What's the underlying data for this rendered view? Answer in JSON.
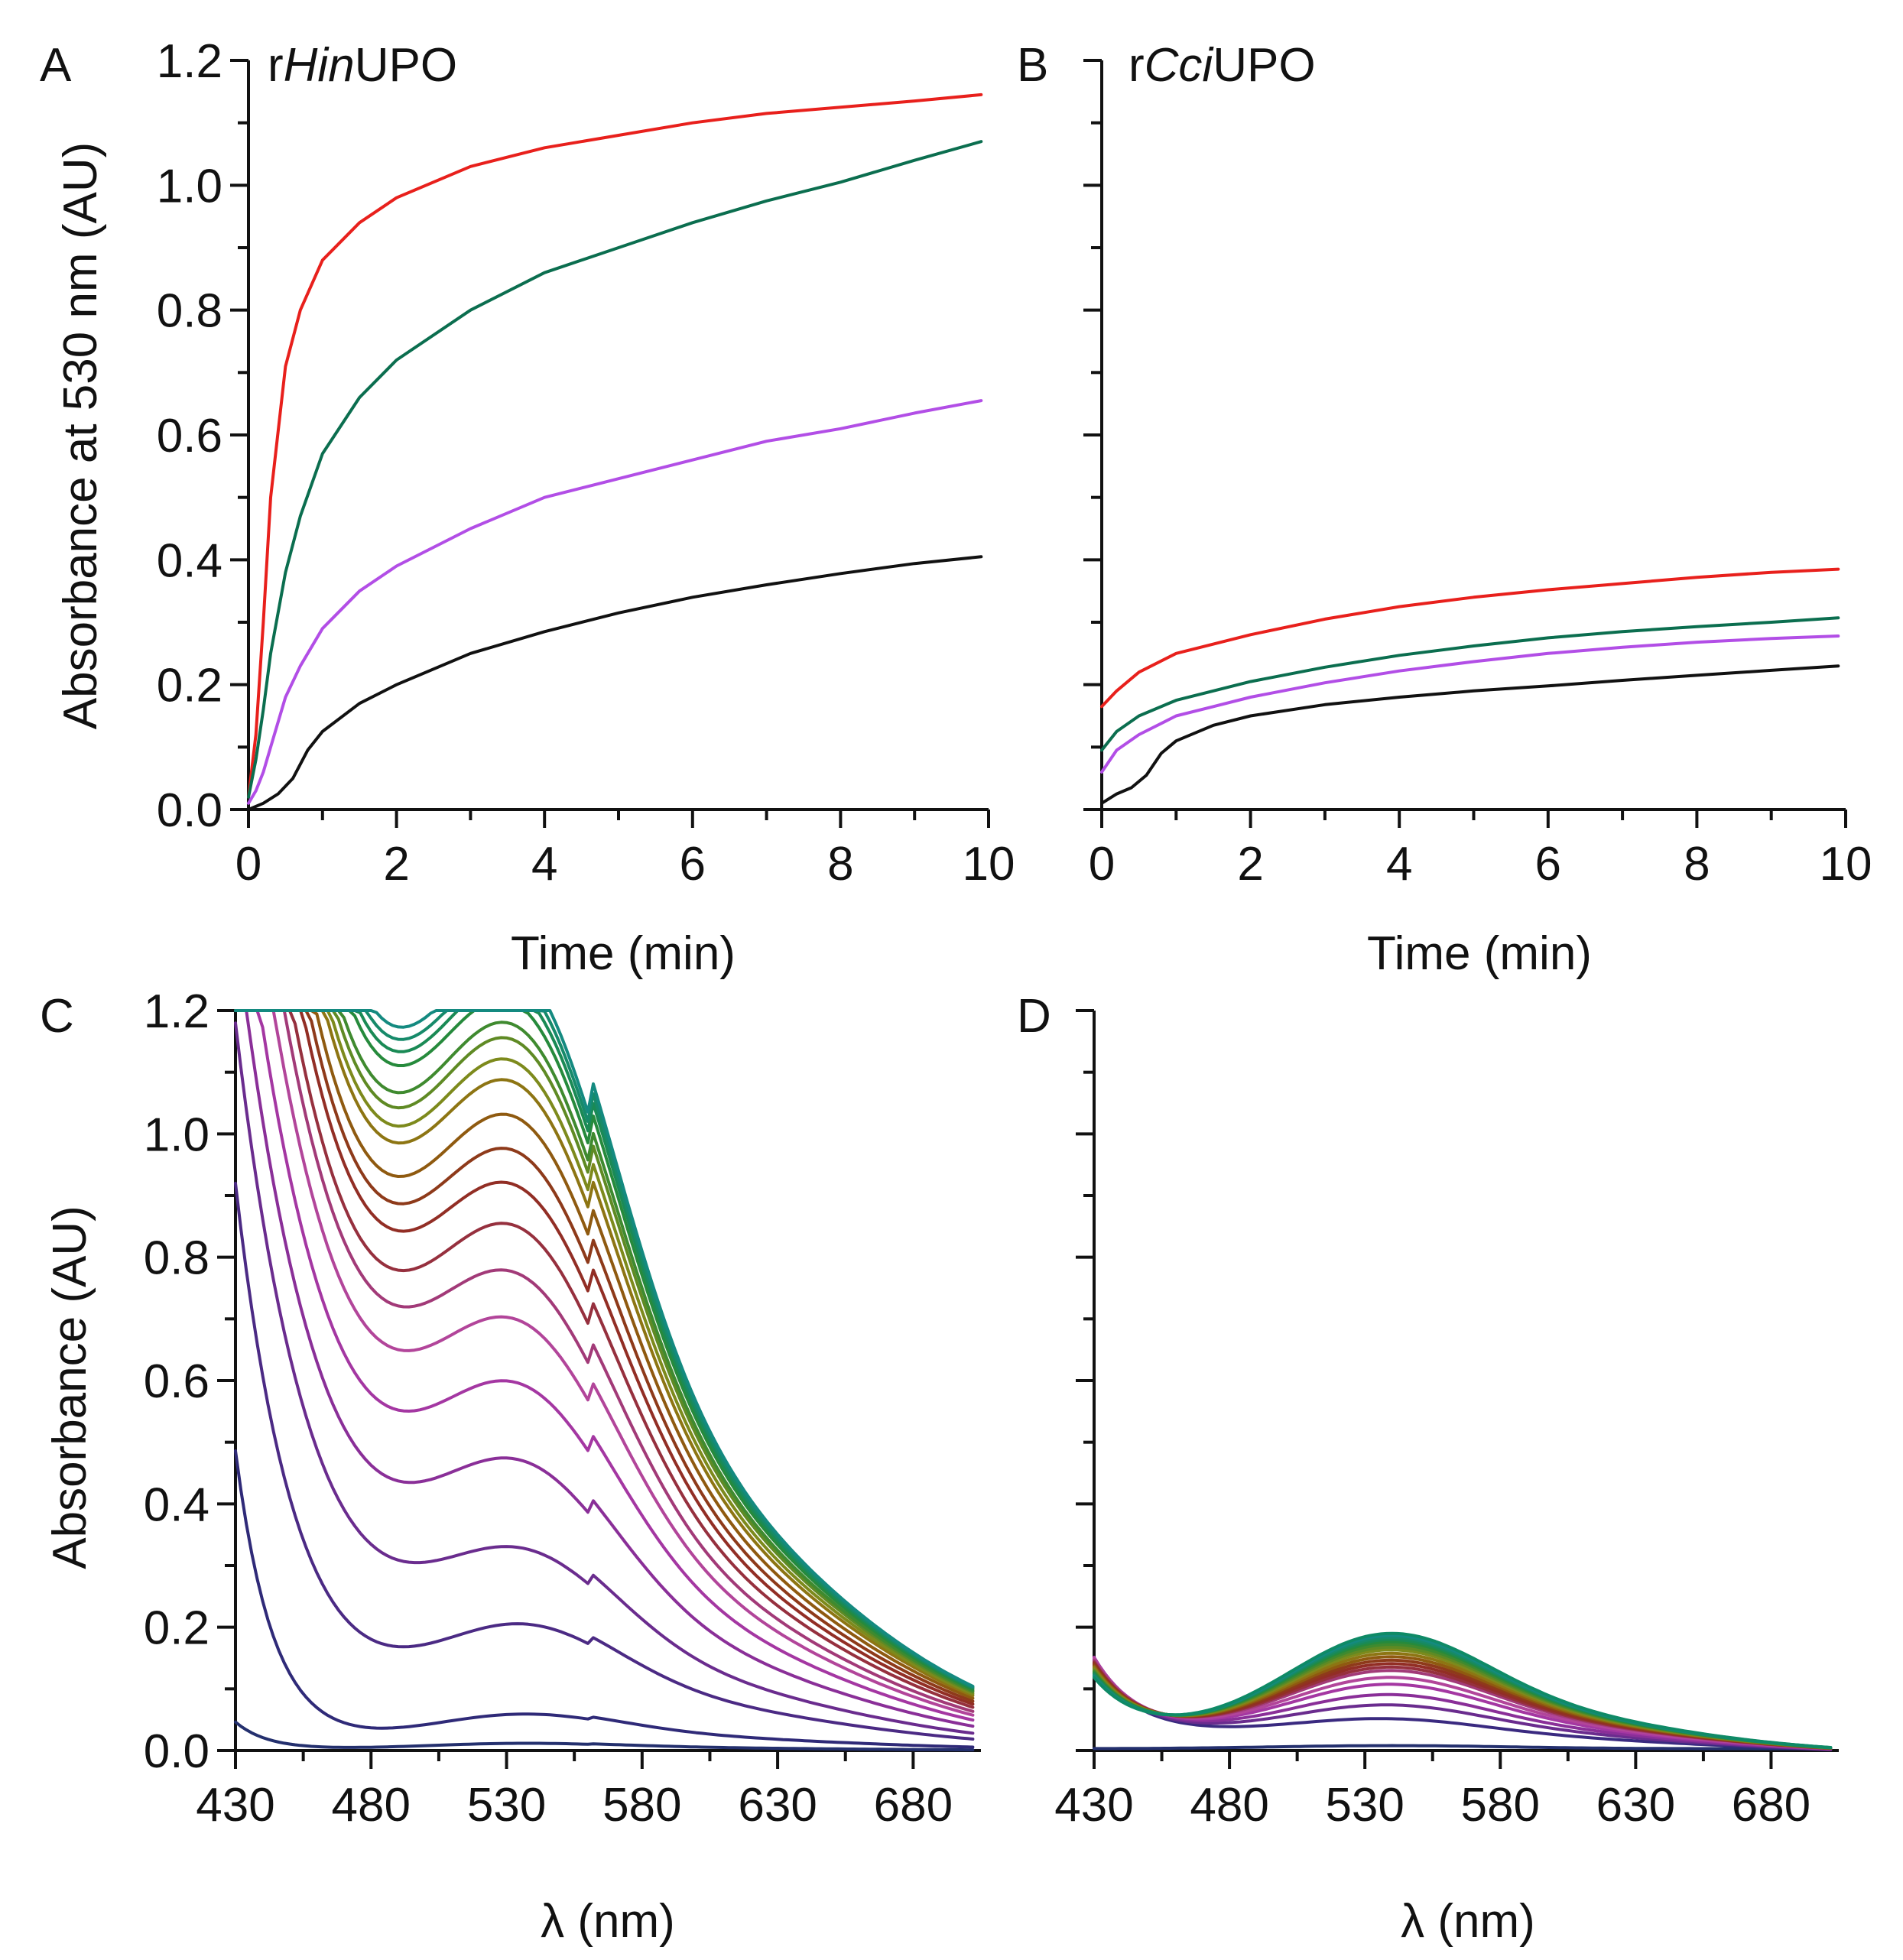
{
  "colors": {
    "red": "#e8201c",
    "green": "#0b6e4f",
    "violet": "#b24ee6",
    "black": "#111111"
  },
  "chart_data": [
    {
      "type": "line",
      "panel": "A",
      "title_parts": [
        "r",
        "Hin",
        "UPO"
      ],
      "xlabel": "Time (min)",
      "ylabel": "Absorbance at 530 nm (AU)",
      "xlim": [
        0,
        10
      ],
      "ylim": [
        0,
        1.2
      ],
      "x_ticks": [
        "0",
        "2",
        "4",
        "6",
        "8",
        "10"
      ],
      "y_ticks": [
        "0.0",
        "0.2",
        "0.4",
        "0.6",
        "0.8",
        "1.0",
        "1.2"
      ],
      "series": [
        {
          "name": "red",
          "color": "#e8201c",
          "x": [
            0,
            0.1,
            0.2,
            0.3,
            0.5,
            0.7,
            1,
            1.5,
            2,
            3,
            4,
            5,
            6,
            7,
            8,
            9,
            9.9
          ],
          "y": [
            0.02,
            0.12,
            0.3,
            0.5,
            0.71,
            0.8,
            0.88,
            0.94,
            0.98,
            1.03,
            1.06,
            1.08,
            1.1,
            1.115,
            1.125,
            1.135,
            1.145
          ]
        },
        {
          "name": "green",
          "color": "#0b6e4f",
          "x": [
            0,
            0.1,
            0.2,
            0.3,
            0.5,
            0.7,
            1,
            1.5,
            2,
            3,
            4,
            5,
            6,
            7,
            8,
            9,
            9.9
          ],
          "y": [
            0.02,
            0.08,
            0.16,
            0.25,
            0.38,
            0.47,
            0.57,
            0.66,
            0.72,
            0.8,
            0.86,
            0.9,
            0.94,
            0.975,
            1.005,
            1.04,
            1.07
          ]
        },
        {
          "name": "violet",
          "color": "#b24ee6",
          "x": [
            0,
            0.1,
            0.2,
            0.3,
            0.5,
            0.7,
            1,
            1.5,
            2,
            3,
            4,
            5,
            6,
            7,
            8,
            9,
            9.9
          ],
          "y": [
            0.01,
            0.03,
            0.06,
            0.1,
            0.18,
            0.23,
            0.29,
            0.35,
            0.39,
            0.45,
            0.5,
            0.53,
            0.56,
            0.59,
            0.61,
            0.635,
            0.655
          ]
        },
        {
          "name": "black",
          "color": "#111111",
          "x": [
            0,
            0.2,
            0.4,
            0.6,
            0.8,
            1,
            1.5,
            2,
            3,
            4,
            5,
            6,
            7,
            8,
            9,
            9.9
          ],
          "y": [
            0.0,
            0.01,
            0.025,
            0.05,
            0.095,
            0.125,
            0.17,
            0.2,
            0.25,
            0.285,
            0.315,
            0.34,
            0.36,
            0.378,
            0.394,
            0.405
          ]
        }
      ]
    },
    {
      "type": "line",
      "panel": "B",
      "title_parts": [
        "r",
        "Cci",
        "UPO"
      ],
      "xlabel": "Time (min)",
      "ylabel": "",
      "xlim": [
        0,
        10
      ],
      "ylim": [
        0,
        1.2
      ],
      "x_ticks": [
        "0",
        "2",
        "4",
        "6",
        "8",
        "10"
      ],
      "y_ticks": [],
      "series": [
        {
          "name": "red",
          "color": "#e8201c",
          "x": [
            0,
            0.2,
            0.5,
            1,
            1.5,
            2,
            3,
            4,
            5,
            6,
            7,
            8,
            9,
            9.9
          ],
          "y": [
            0.165,
            0.19,
            0.22,
            0.25,
            0.265,
            0.28,
            0.305,
            0.325,
            0.34,
            0.352,
            0.362,
            0.372,
            0.38,
            0.385
          ]
        },
        {
          "name": "green",
          "color": "#0b6e4f",
          "x": [
            0,
            0.2,
            0.5,
            1,
            1.5,
            2,
            3,
            4,
            5,
            6,
            7,
            8,
            9,
            9.9
          ],
          "y": [
            0.095,
            0.125,
            0.15,
            0.175,
            0.19,
            0.205,
            0.228,
            0.247,
            0.262,
            0.275,
            0.285,
            0.293,
            0.3,
            0.307
          ]
        },
        {
          "name": "violet",
          "color": "#b24ee6",
          "x": [
            0,
            0.2,
            0.5,
            1,
            1.5,
            2,
            3,
            4,
            5,
            6,
            7,
            8,
            9,
            9.9
          ],
          "y": [
            0.06,
            0.095,
            0.12,
            0.15,
            0.165,
            0.18,
            0.203,
            0.222,
            0.237,
            0.25,
            0.26,
            0.268,
            0.274,
            0.278
          ]
        },
        {
          "name": "black",
          "color": "#111111",
          "x": [
            0,
            0.2,
            0.4,
            0.6,
            0.8,
            1,
            1.5,
            2,
            3,
            4,
            5,
            6,
            7,
            8,
            9,
            9.9
          ],
          "y": [
            0.01,
            0.025,
            0.035,
            0.055,
            0.09,
            0.11,
            0.135,
            0.15,
            0.168,
            0.18,
            0.19,
            0.198,
            0.207,
            0.215,
            0.223,
            0.23
          ]
        }
      ]
    },
    {
      "type": "line",
      "panel": "C",
      "title_parts": [],
      "xlabel": "λ (nm)",
      "ylabel": "Absorbance (AU)",
      "xlim": [
        430,
        705
      ],
      "ylim": [
        0,
        1.2
      ],
      "x_ticks": [
        "430",
        "480",
        "530",
        "580",
        "630",
        "680"
      ],
      "y_ticks": [
        "0.0",
        "0.2",
        "0.4",
        "0.6",
        "0.8",
        "1.0",
        "1.2"
      ],
      "series_colors": [
        "#24306e",
        "#2f2a78",
        "#4b2a84",
        "#6a2c8e",
        "#8a2f98",
        "#a437a2",
        "#b2459a",
        "#a23a78",
        "#96303e",
        "#922e25",
        "#8e3a1a",
        "#8f5a10",
        "#8d7513",
        "#7d8a1c",
        "#5f8a24",
        "#3f8a2f",
        "#268a3c",
        "#1a8a55",
        "#168a6a",
        "#148a80"
      ],
      "series_params": [
        {
          "peak": 0.012,
          "amp": 0.045,
          "decay": 12
        },
        {
          "peak": 0.06,
          "amp": 0.48,
          "decay": 14
        },
        {
          "peak": 0.2,
          "amp": 0.9,
          "decay": 23
        },
        {
          "peak": 0.3,
          "amp": 1.15,
          "decay": 30
        },
        {
          "peak": 0.42,
          "amp": 1.3,
          "decay": 34
        },
        {
          "peak": 0.52,
          "amp": 1.45,
          "decay": 37
        },
        {
          "peak": 0.6,
          "amp": 1.6,
          "decay": 39
        },
        {
          "peak": 0.66,
          "amp": 1.72,
          "decay": 40
        },
        {
          "peak": 0.73,
          "amp": 1.82,
          "decay": 40
        },
        {
          "peak": 0.78,
          "amp": 1.92,
          "decay": 41
        },
        {
          "peak": 0.83,
          "amp": 2.0,
          "decay": 41
        },
        {
          "peak": 0.88,
          "amp": 2.08,
          "decay": 41
        },
        {
          "peak": 0.92,
          "amp": 2.15,
          "decay": 42
        },
        {
          "peak": 0.95,
          "amp": 2.2,
          "decay": 42
        },
        {
          "peak": 0.98,
          "amp": 2.26,
          "decay": 42
        },
        {
          "peak": 1.0,
          "amp": 2.32,
          "decay": 42
        },
        {
          "peak": 1.02,
          "amp": 2.38,
          "decay": 43
        },
        {
          "peak": 1.04,
          "amp": 2.43,
          "decay": 43
        },
        {
          "peak": 1.055,
          "amp": 2.48,
          "decay": 43
        },
        {
          "peak": 1.07,
          "amp": 2.53,
          "decay": 43
        }
      ]
    },
    {
      "type": "line",
      "panel": "D",
      "title_parts": [],
      "xlabel": "λ (nm)",
      "ylabel": "",
      "xlim": [
        430,
        705
      ],
      "ylim": [
        0,
        1.2
      ],
      "x_ticks": [
        "430",
        "480",
        "530",
        "580",
        "630",
        "680"
      ],
      "y_ticks": [],
      "series_colors": [
        "#24306e",
        "#3a2a80",
        "#6a2c8e",
        "#8a2f98",
        "#a437a2",
        "#b2459a",
        "#a23a78",
        "#96303e",
        "#922e25",
        "#8e3a1a",
        "#8f5a10",
        "#8d7513",
        "#7d8a1c",
        "#5f8a24",
        "#3f8a2f",
        "#268a3c",
        "#1a8a55",
        "#168a6a",
        "#148a80",
        "#0f8a66"
      ],
      "series_params": [
        {
          "peak": 0.005,
          "start": 0.0
        },
        {
          "peak": 0.03,
          "start": 0.14
        },
        {
          "peak": 0.05,
          "start": 0.145
        },
        {
          "peak": 0.065,
          "start": 0.15
        },
        {
          "peak": 0.08,
          "start": 0.15
        },
        {
          "peak": 0.09,
          "start": 0.148
        },
        {
          "peak": 0.1,
          "start": 0.145
        },
        {
          "peak": 0.105,
          "start": 0.142
        },
        {
          "peak": 0.11,
          "start": 0.14
        },
        {
          "peak": 0.115,
          "start": 0.138
        },
        {
          "peak": 0.12,
          "start": 0.135
        },
        {
          "peak": 0.125,
          "start": 0.133
        },
        {
          "peak": 0.13,
          "start": 0.13
        },
        {
          "peak": 0.134,
          "start": 0.128
        },
        {
          "peak": 0.138,
          "start": 0.126
        },
        {
          "peak": 0.142,
          "start": 0.124
        },
        {
          "peak": 0.145,
          "start": 0.122
        },
        {
          "peak": 0.148,
          "start": 0.12
        },
        {
          "peak": 0.151,
          "start": 0.118
        },
        {
          "peak": 0.154,
          "start": 0.116
        }
      ]
    }
  ]
}
